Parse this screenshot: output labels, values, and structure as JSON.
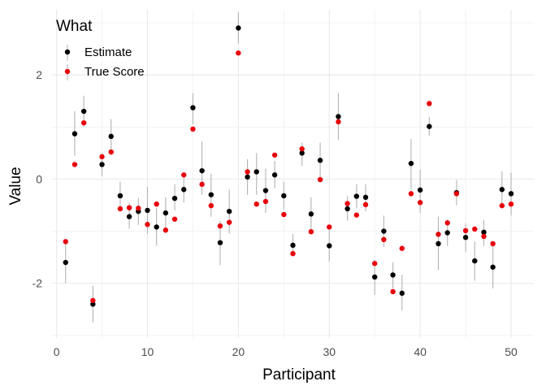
{
  "chart_data": {
    "type": "scatter",
    "xlabel": "Participant",
    "ylabel": "Value",
    "xlim": [
      -0.5,
      52.5
    ],
    "ylim": [
      -3.05,
      3.25
    ],
    "x_ticks": [
      0,
      10,
      20,
      30,
      40,
      50
    ],
    "y_ticks": [
      -2,
      0,
      2
    ],
    "x_tick_labels": [
      "0",
      "10",
      "20",
      "30",
      "40",
      "50"
    ],
    "y_tick_labels": [
      "-2",
      "0",
      "2"
    ],
    "grid": true,
    "legend": {
      "title": "What",
      "position": "top-left",
      "entries": [
        "Estimate",
        "True Score"
      ]
    },
    "colors": {
      "Estimate": "#000000",
      "True Score": "#e8000b",
      "errorbar": "#b3b3b3",
      "grid": "#ebebeb"
    },
    "x": [
      1,
      2,
      3,
      4,
      5,
      6,
      7,
      8,
      9,
      10,
      11,
      12,
      13,
      14,
      15,
      16,
      17,
      18,
      19,
      20,
      21,
      22,
      23,
      24,
      25,
      26,
      27,
      28,
      29,
      30,
      31,
      32,
      33,
      34,
      35,
      36,
      37,
      38,
      39,
      40,
      41,
      42,
      43,
      44,
      45,
      46,
      47,
      48,
      49,
      50
    ],
    "series": [
      {
        "name": "Estimate",
        "values": [
          -1.6,
          0.87,
          1.3,
          -2.4,
          0.28,
          0.82,
          -0.32,
          -0.72,
          -0.62,
          -0.6,
          -0.92,
          -0.65,
          -0.37,
          -0.2,
          1.37,
          0.16,
          -0.3,
          -1.22,
          -0.62,
          2.9,
          0.04,
          0.14,
          -0.22,
          0.08,
          -0.32,
          -1.27,
          0.5,
          -0.67,
          0.36,
          -1.28,
          1.2,
          -0.57,
          -0.33,
          -0.35,
          -1.88,
          -1.0,
          -1.84,
          -2.19,
          0.3,
          -0.21,
          1.01,
          -1.24,
          -1.03,
          -0.26,
          -1.12,
          -1.57,
          -1.02,
          -1.69,
          -0.2,
          -0.28
        ],
        "low": [
          -2.0,
          0.45,
          1.0,
          -2.75,
          0.05,
          0.5,
          -0.55,
          -0.95,
          -0.88,
          -1.05,
          -1.28,
          -0.95,
          -0.6,
          -0.45,
          1.05,
          -0.3,
          -0.72,
          -1.65,
          -1.05,
          2.6,
          -0.3,
          -0.3,
          -0.65,
          -0.18,
          -0.58,
          -1.48,
          0.25,
          -0.98,
          0.0,
          -1.58,
          0.75,
          -0.8,
          -0.55,
          -0.62,
          -2.22,
          -1.3,
          -2.1,
          -2.52,
          -0.2,
          -0.65,
          0.83,
          -1.75,
          -1.28,
          -0.5,
          -1.4,
          -1.95,
          -1.28,
          -2.1,
          -0.55,
          -0.7
        ],
        "high": [
          -1.2,
          1.3,
          1.6,
          -2.05,
          0.5,
          1.15,
          -0.05,
          -0.45,
          -0.36,
          -0.15,
          -0.55,
          -0.35,
          -0.1,
          0.1,
          1.65,
          0.72,
          0.1,
          -0.8,
          -0.2,
          3.2,
          0.38,
          0.5,
          0.2,
          0.35,
          -0.05,
          -1.05,
          0.7,
          -0.35,
          0.7,
          -0.98,
          1.65,
          -0.33,
          -0.1,
          -0.1,
          -1.55,
          -0.7,
          -1.6,
          -1.84,
          0.77,
          0.18,
          1.19,
          -0.72,
          -0.78,
          -0.02,
          -0.85,
          -1.2,
          -0.78,
          -1.28,
          0.15,
          0.12
        ]
      },
      {
        "name": "True Score",
        "values": [
          -1.2,
          0.28,
          1.08,
          -2.33,
          0.43,
          0.52,
          -0.57,
          -0.55,
          -0.56,
          -0.87,
          -0.48,
          -0.98,
          -0.77,
          0.08,
          0.96,
          -0.1,
          -0.51,
          -0.9,
          -0.83,
          2.42,
          0.14,
          -0.48,
          -0.43,
          0.46,
          -0.68,
          -1.43,
          0.58,
          -1.01,
          -0.01,
          -0.92,
          1.1,
          -0.47,
          -0.69,
          -0.49,
          -1.62,
          -1.16,
          -2.16,
          -1.33,
          -0.28,
          -0.45,
          1.45,
          -1.06,
          -0.84,
          -0.28,
          -0.99,
          -0.96,
          -1.1,
          -1.24,
          -0.51,
          -0.48
        ]
      }
    ]
  }
}
